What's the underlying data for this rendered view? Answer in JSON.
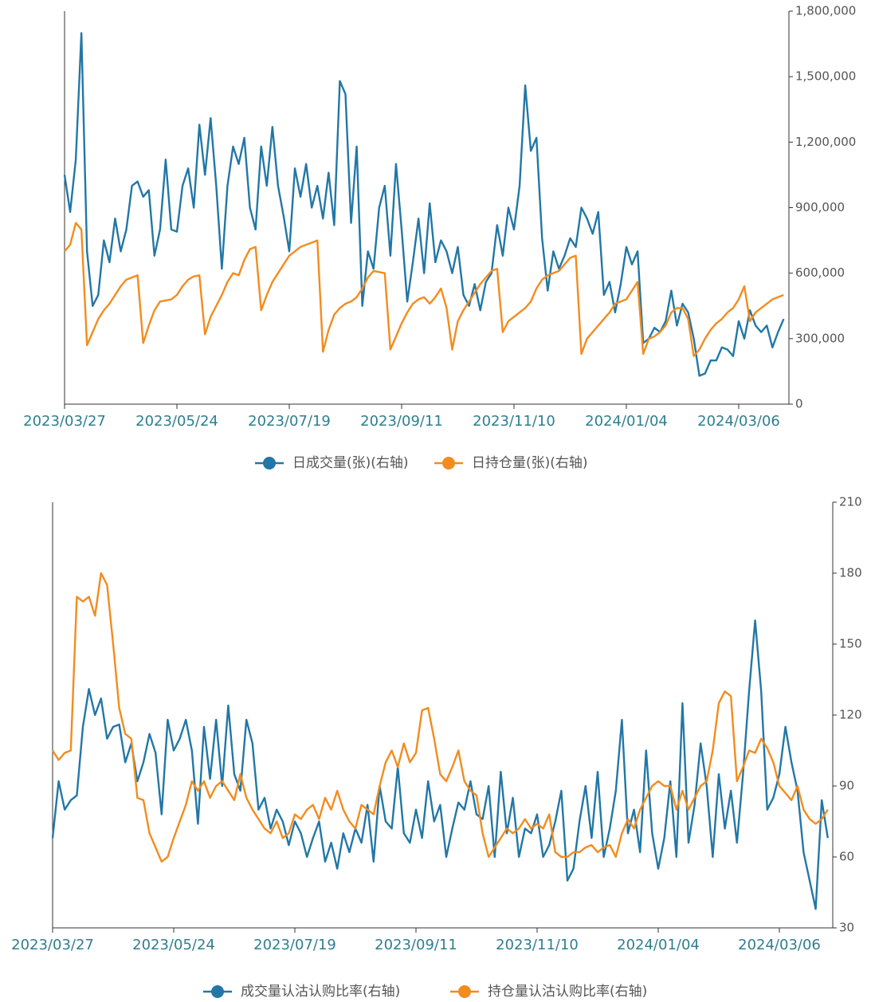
{
  "chart_data": [
    {
      "type": "line",
      "categories": [
        "2023/03/27",
        null,
        null,
        null,
        null,
        null,
        null,
        null,
        null,
        null,
        null,
        null,
        null,
        null,
        null,
        null,
        null,
        null,
        null,
        null,
        "2023/05/24",
        null,
        null,
        null,
        null,
        null,
        null,
        null,
        null,
        null,
        null,
        null,
        null,
        null,
        null,
        null,
        null,
        null,
        null,
        null,
        "2023/07/19",
        null,
        null,
        null,
        null,
        null,
        null,
        null,
        null,
        null,
        null,
        null,
        null,
        null,
        null,
        null,
        null,
        null,
        null,
        null,
        "2023/09/11",
        null,
        null,
        null,
        null,
        null,
        null,
        null,
        null,
        null,
        null,
        null,
        null,
        null,
        null,
        null,
        null,
        null,
        null,
        null,
        "2023/11/10",
        null,
        null,
        null,
        null,
        null,
        null,
        null,
        null,
        null,
        null,
        null,
        null,
        null,
        null,
        null,
        null,
        null,
        null,
        null,
        "2024/01/04",
        null,
        null,
        null,
        null,
        null,
        null,
        null,
        null,
        null,
        null,
        null,
        null,
        null,
        null,
        null,
        null,
        null,
        null,
        null,
        "2024/03/06",
        null,
        null,
        null,
        null,
        null,
        null,
        null,
        null
      ],
      "y_axis_side": "right",
      "ylim": [
        0,
        1800000
      ],
      "yticks": [
        0,
        {
          "value": 300000,
          "label": "300,000"
        },
        {
          "value": 600000,
          "label": "600,000"
        },
        {
          "value": 900000,
          "label": "900,000"
        },
        {
          "value": 1200000,
          "label": "1,200,000"
        },
        {
          "value": 1500000,
          "label": "1,500,000"
        },
        {
          "value": 1800000,
          "label": "1,800,000"
        }
      ],
      "legend": "bottom",
      "series": [
        {
          "name": "日成交量(张)(右轴)",
          "color": "#2277a6",
          "values": [
            1050000,
            880000,
            1120000,
            1700000,
            700000,
            450000,
            500000,
            750000,
            650000,
            850000,
            700000,
            800000,
            1000000,
            1020000,
            950000,
            980000,
            680000,
            800000,
            1120000,
            800000,
            790000,
            1000000,
            1080000,
            900000,
            1280000,
            1050000,
            1310000,
            1000000,
            620000,
            1000000,
            1180000,
            1100000,
            1220000,
            900000,
            800000,
            1180000,
            1000000,
            1270000,
            1000000,
            860000,
            700000,
            1080000,
            950000,
            1100000,
            900000,
            1000000,
            850000,
            1060000,
            820000,
            1480000,
            1420000,
            830000,
            1180000,
            450000,
            700000,
            620000,
            900000,
            1000000,
            680000,
            1100000,
            800000,
            470000,
            650000,
            850000,
            600000,
            920000,
            650000,
            750000,
            700000,
            600000,
            720000,
            500000,
            450000,
            550000,
            430000,
            560000,
            600000,
            820000,
            680000,
            900000,
            800000,
            1000000,
            1460000,
            1160000,
            1220000,
            760000,
            520000,
            700000,
            620000,
            680000,
            760000,
            720000,
            900000,
            850000,
            780000,
            880000,
            500000,
            560000,
            420000,
            550000,
            720000,
            640000,
            700000,
            280000,
            300000,
            350000,
            330000,
            380000,
            520000,
            360000,
            460000,
            420000,
            300000,
            130000,
            140000,
            200000,
            200000,
            260000,
            250000,
            220000,
            380000,
            300000,
            430000,
            360000,
            330000,
            360000,
            260000,
            330000,
            390000
          ]
        },
        {
          "name": "日持仓量(张)(右轴)",
          "color": "#f28c1e",
          "values": [
            700000,
            730000,
            830000,
            800000,
            270000,
            330000,
            390000,
            430000,
            460000,
            500000,
            540000,
            570000,
            580000,
            590000,
            280000,
            360000,
            430000,
            470000,
            475000,
            480000,
            500000,
            540000,
            570000,
            585000,
            590000,
            320000,
            400000,
            450000,
            500000,
            560000,
            600000,
            590000,
            660000,
            710000,
            720000,
            430000,
            500000,
            560000,
            600000,
            640000,
            680000,
            700000,
            720000,
            730000,
            740000,
            750000,
            240000,
            340000,
            410000,
            440000,
            460000,
            470000,
            490000,
            530000,
            580000,
            610000,
            605000,
            600000,
            250000,
            310000,
            370000,
            420000,
            460000,
            480000,
            490000,
            460000,
            490000,
            530000,
            440000,
            250000,
            380000,
            430000,
            470000,
            510000,
            550000,
            580000,
            610000,
            620000,
            330000,
            380000,
            400000,
            420000,
            440000,
            470000,
            530000,
            570000,
            590000,
            600000,
            610000,
            640000,
            670000,
            680000,
            230000,
            300000,
            330000,
            360000,
            390000,
            420000,
            460000,
            470000,
            480000,
            520000,
            560000,
            230000,
            300000,
            310000,
            330000,
            360000,
            420000,
            440000,
            440000,
            390000,
            220000,
            250000,
            300000,
            340000,
            370000,
            390000,
            420000,
            440000,
            480000,
            540000,
            380000,
            420000,
            440000,
            460000,
            480000,
            490000,
            500000
          ]
        }
      ]
    },
    {
      "type": "line",
      "categories": [
        "2023/03/27",
        null,
        null,
        null,
        null,
        null,
        null,
        null,
        null,
        null,
        null,
        null,
        null,
        null,
        null,
        null,
        null,
        null,
        null,
        null,
        "2023/05/24",
        null,
        null,
        null,
        null,
        null,
        null,
        null,
        null,
        null,
        null,
        null,
        null,
        null,
        null,
        null,
        null,
        null,
        null,
        null,
        "2023/07/19",
        null,
        null,
        null,
        null,
        null,
        null,
        null,
        null,
        null,
        null,
        null,
        null,
        null,
        null,
        null,
        null,
        null,
        null,
        null,
        "2023/09/11",
        null,
        null,
        null,
        null,
        null,
        null,
        null,
        null,
        null,
        null,
        null,
        null,
        null,
        null,
        null,
        null,
        null,
        null,
        null,
        "2023/11/10",
        null,
        null,
        null,
        null,
        null,
        null,
        null,
        null,
        null,
        null,
        null,
        null,
        null,
        null,
        null,
        null,
        null,
        null,
        null,
        "2024/01/04",
        null,
        null,
        null,
        null,
        null,
        null,
        null,
        null,
        null,
        null,
        null,
        null,
        null,
        null,
        null,
        null,
        null,
        null,
        null,
        "2024/03/06",
        null,
        null,
        null,
        null,
        null,
        null,
        null,
        null
      ],
      "y_axis_side": "right",
      "ylim": [
        30,
        210
      ],
      "yticks": [
        30,
        60,
        90,
        120,
        150,
        180,
        210
      ],
      "legend": "bottom",
      "series": [
        {
          "name": "成交量认沽认购比率(右轴)",
          "color": "#2277a6",
          "values": [
            68,
            92,
            80,
            84,
            86,
            115,
            131,
            120,
            127,
            110,
            115,
            116,
            100,
            108,
            92,
            100,
            112,
            104,
            78,
            118,
            105,
            110,
            118,
            105,
            74,
            115,
            93,
            118,
            90,
            124,
            95,
            88,
            118,
            108,
            80,
            85,
            72,
            80,
            75,
            65,
            75,
            70,
            60,
            68,
            75,
            58,
            66,
            55,
            70,
            62,
            72,
            66,
            82,
            58,
            90,
            75,
            72,
            98,
            70,
            66,
            80,
            68,
            92,
            75,
            82,
            60,
            72,
            83,
            80,
            92,
            78,
            76,
            90,
            60,
            96,
            70,
            85,
            60,
            72,
            70,
            78,
            60,
            65,
            75,
            88,
            50,
            55,
            75,
            90,
            68,
            96,
            60,
            72,
            88,
            118,
            70,
            80,
            62,
            105,
            70,
            55,
            68,
            92,
            60,
            125,
            66,
            82,
            108,
            90,
            60,
            95,
            72,
            88,
            66,
            95,
            130,
            160,
            130,
            80,
            85,
            95,
            115,
            100,
            88,
            62,
            50,
            38,
            84,
            68
          ]
        },
        {
          "name": "持仓量认沽认购比率(右轴)",
          "color": "#f28c1e",
          "values": [
            105,
            101,
            104,
            105,
            170,
            168,
            170,
            162,
            180,
            175,
            150,
            123,
            112,
            110,
            85,
            84,
            70,
            64,
            58,
            60,
            68,
            75,
            82,
            92,
            88,
            92,
            85,
            90,
            92,
            88,
            84,
            95,
            85,
            80,
            76,
            72,
            70,
            75,
            68,
            70,
            78,
            76,
            80,
            82,
            76,
            85,
            80,
            88,
            80,
            75,
            72,
            82,
            80,
            78,
            90,
            100,
            105,
            98,
            108,
            100,
            104,
            122,
            123,
            110,
            95,
            92,
            98,
            105,
            92,
            88,
            86,
            70,
            60,
            64,
            68,
            72,
            70,
            72,
            76,
            72,
            74,
            72,
            78,
            62,
            60,
            60,
            62,
            62,
            64,
            65,
            62,
            64,
            65,
            60,
            70,
            76,
            72,
            80,
            85,
            90,
            92,
            90,
            90,
            80,
            88,
            80,
            85,
            90,
            92,
            105,
            125,
            130,
            128,
            92,
            98,
            105,
            104,
            110,
            106,
            100,
            90,
            87,
            84,
            90,
            80,
            76,
            74,
            76,
            80
          ]
        }
      ]
    }
  ]
}
